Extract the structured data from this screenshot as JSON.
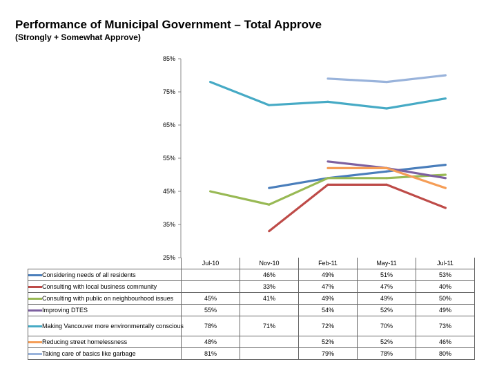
{
  "title": "Performance of Municipal Government – Total Approve",
  "subtitle": "(Strongly + Somewhat Approve)",
  "chart_data": {
    "type": "line",
    "categories": [
      "Jul-10",
      "Nov-10",
      "Feb-11",
      "May-11",
      "Jul-11"
    ],
    "ylim": [
      25,
      85
    ],
    "yticks": [
      "25%",
      "35%",
      "45%",
      "55%",
      "65%",
      "75%",
      "85%"
    ],
    "grid": false,
    "legend": "data-table",
    "series": [
      {
        "name": "Considering needs of all residents",
        "color": "#4a7ebb",
        "values": [
          null,
          46,
          49,
          51,
          53
        ],
        "labels": [
          "",
          "46%",
          "49%",
          "51%",
          "53%"
        ]
      },
      {
        "name": "Consulting with local business community",
        "color": "#be4b48",
        "values": [
          null,
          33,
          47,
          47,
          40
        ],
        "labels": [
          "",
          "33%",
          "47%",
          "47%",
          "40%"
        ]
      },
      {
        "name": "Consulting with public on neighbourhood issues",
        "color": "#98b954",
        "values": [
          45,
          41,
          49,
          49,
          50
        ],
        "labels": [
          "45%",
          "41%",
          "49%",
          "49%",
          "50%"
        ]
      },
      {
        "name": "Improving DTES",
        "color": "#7d60a0",
        "values": [
          55,
          null,
          54,
          52,
          49
        ],
        "labels": [
          "55%",
          "",
          "54%",
          "52%",
          "49%"
        ]
      },
      {
        "name": "Making Vancouver more environmentally conscious",
        "color": "#46aac5",
        "values": [
          78,
          71,
          72,
          70,
          73
        ],
        "labels": [
          "78%",
          "71%",
          "72%",
          "70%",
          "73%"
        ]
      },
      {
        "name": "Reducing street homelessness",
        "color": "#f59d56",
        "values": [
          48,
          null,
          52,
          52,
          46
        ],
        "labels": [
          "48%",
          "",
          "52%",
          "52%",
          "46%"
        ]
      },
      {
        "name": "Taking care of basics like garbage",
        "color": "#99b3db",
        "values": [
          81,
          null,
          79,
          78,
          80
        ],
        "labels": [
          "81%",
          "",
          "79%",
          "78%",
          "80%"
        ]
      }
    ]
  }
}
